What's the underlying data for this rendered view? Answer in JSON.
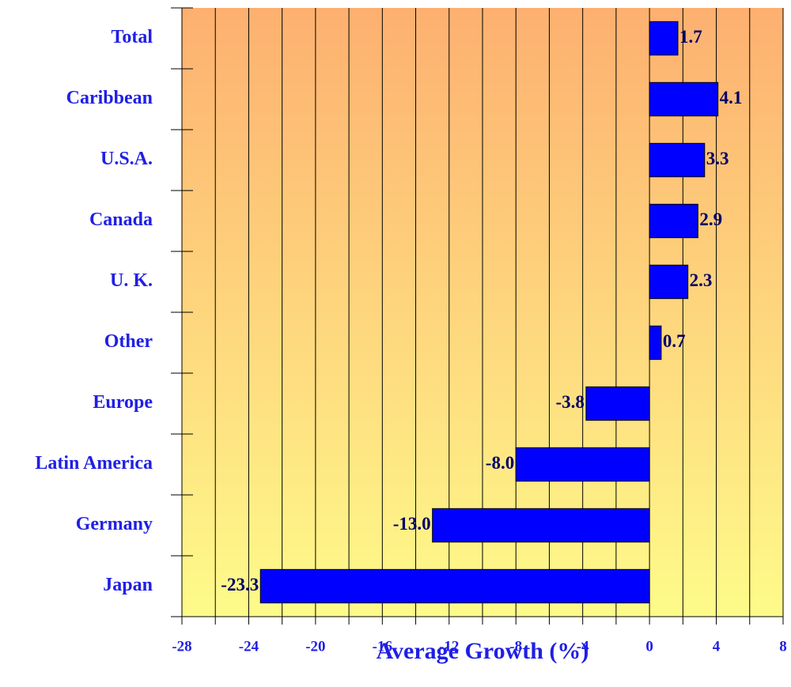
{
  "chart_data": {
    "type": "barh",
    "xlabel": "Average Growth (%)",
    "categories": [
      "Total",
      "Caribbean",
      "U.S.A.",
      "Canada",
      "U. K.",
      "Other",
      "Europe",
      "Latin America",
      "Germany",
      "Japan"
    ],
    "values": [
      1.7,
      4.1,
      3.3,
      2.9,
      2.3,
      0.7,
      -3.8,
      -8,
      -13,
      -23.3
    ],
    "value_labels": [
      "1.7",
      "4.1",
      "3.3",
      "2.9",
      "2.3",
      "0.7",
      "-3.8",
      "-8.0",
      "-13.0",
      "-23.3"
    ],
    "color": "#0000ff",
    "xlim": [
      -28,
      8
    ],
    "xticks": [
      -28,
      -24,
      -20,
      -16,
      -12,
      -8,
      -4,
      0,
      4,
      8
    ],
    "xminorticks": [
      -26,
      -22,
      -18,
      -14,
      -10,
      -6,
      -2,
      2,
      6
    ],
    "grid": true
  }
}
